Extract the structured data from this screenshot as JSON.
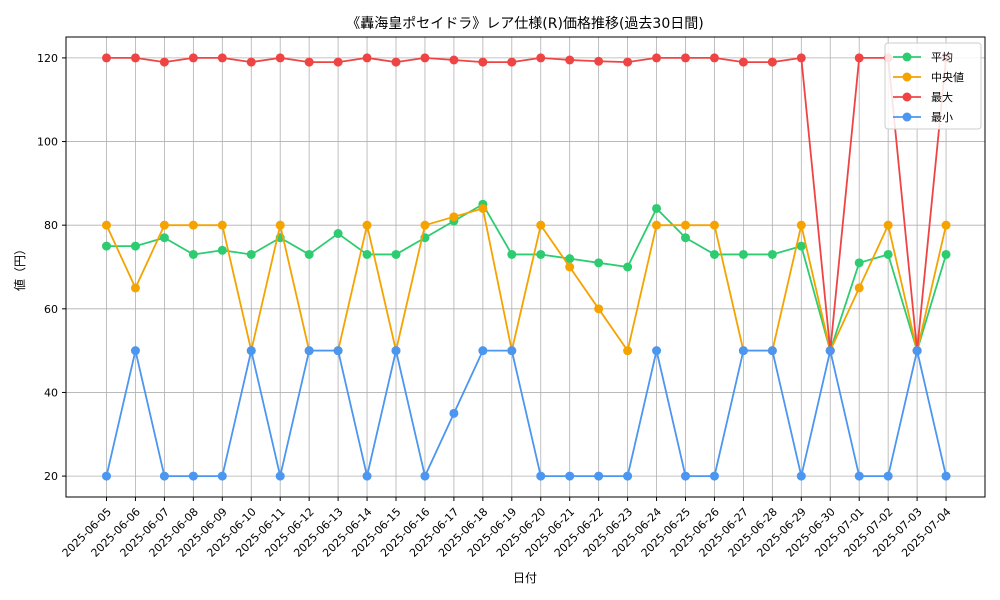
{
  "chart_data": {
    "type": "line",
    "title": "《轟海皇ポセイドラ》レア仕様(R)価格推移(過去30日間)",
    "xlabel": "日付",
    "ylabel": "値（円）",
    "ylim": [
      15,
      125
    ],
    "yticks": [
      20,
      40,
      60,
      80,
      100,
      120
    ],
    "grid": true,
    "legend_position": "top-right",
    "categories": [
      "2025-06-05",
      "2025-06-06",
      "2025-06-07",
      "2025-06-08",
      "2025-06-09",
      "2025-06-10",
      "2025-06-11",
      "2025-06-12",
      "2025-06-13",
      "2025-06-14",
      "2025-06-15",
      "2025-06-16",
      "2025-06-17",
      "2025-06-18",
      "2025-06-19",
      "2025-06-20",
      "2025-06-21",
      "2025-06-22",
      "2025-06-23",
      "2025-06-24",
      "2025-06-25",
      "2025-06-26",
      "2025-06-27",
      "2025-06-28",
      "2025-06-29",
      "2025-06-30",
      "2025-07-01",
      "2025-07-02",
      "2025-07-03",
      "2025-07-04"
    ],
    "series": [
      {
        "name": "平均",
        "color": "#2ecc71",
        "values": [
          75,
          75,
          77,
          73,
          74,
          73,
          77,
          73,
          78,
          73,
          73,
          77,
          81,
          85,
          73,
          73,
          72,
          71,
          70,
          84,
          77,
          73,
          73,
          73,
          75,
          50,
          71,
          73,
          50,
          73
        ]
      },
      {
        "name": "中央値",
        "color": "#f5a300",
        "values": [
          80,
          65,
          80,
          80,
          80,
          50,
          80,
          50,
          50,
          80,
          50,
          80,
          82,
          84,
          50,
          80,
          70,
          60,
          50,
          80,
          80,
          80,
          50,
          50,
          80,
          50,
          65,
          80,
          50,
          80
        ]
      },
      {
        "name": "最大",
        "color": "#ef4444",
        "values": [
          120,
          120,
          119,
          120,
          120,
          119,
          120,
          119,
          119,
          120,
          119,
          120,
          119.5,
          119,
          119,
          120,
          119.5,
          119.2,
          119,
          120,
          120,
          120,
          119,
          119,
          120,
          50,
          120,
          120,
          50,
          120
        ]
      },
      {
        "name": "最小",
        "color": "#4b96f0",
        "values": [
          20,
          50,
          20,
          20,
          20,
          50,
          20,
          50,
          50,
          20,
          50,
          20,
          35,
          50,
          50,
          20,
          20,
          20,
          20,
          50,
          20,
          20,
          50,
          50,
          20,
          50,
          20,
          20,
          50,
          20
        ]
      }
    ]
  }
}
